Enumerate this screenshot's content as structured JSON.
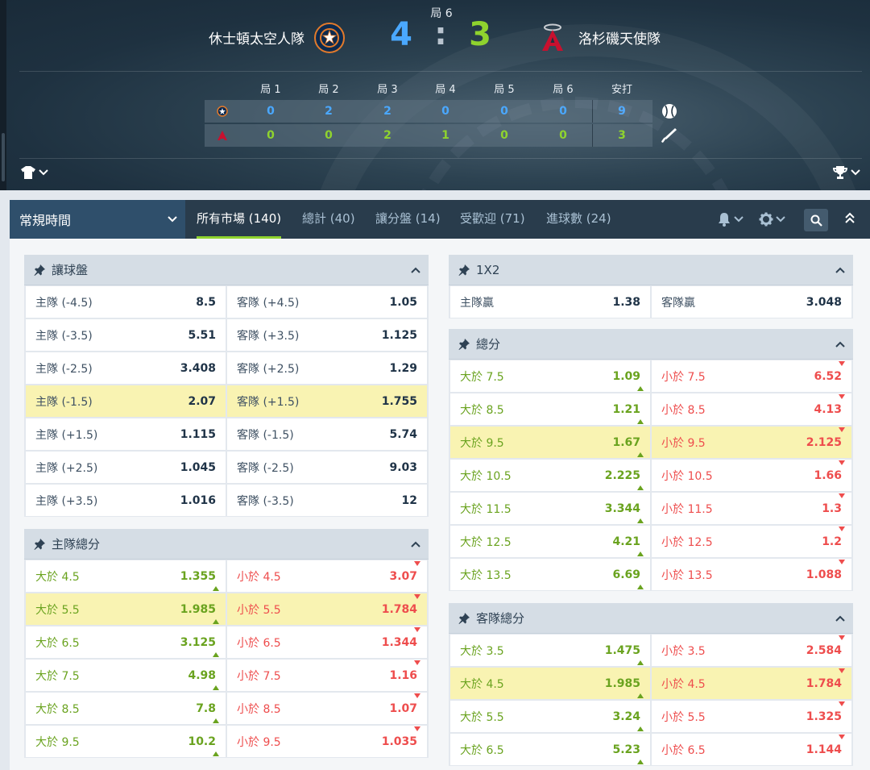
{
  "scoreboard": {
    "period": "局 6",
    "home_team": "休士頓太空人隊",
    "away_team": "洛杉磯天使隊",
    "home_score": "4",
    "separator": ":",
    "away_score": "3",
    "home_color": "#4aa8ff",
    "away_color": "#8fd32e",
    "columns": [
      "局 1",
      "局 2",
      "局 3",
      "局 4",
      "局 5",
      "局 6",
      "安打"
    ],
    "home_line": [
      "0",
      "2",
      "2",
      "0",
      "0",
      "0",
      "9"
    ],
    "away_line": [
      "0",
      "0",
      "2",
      "1",
      "0",
      "0",
      "3"
    ],
    "home_line_icon": "baseball-icon",
    "away_line_icon": "bat-icon"
  },
  "nav": {
    "period_select": "常規時間",
    "tabs": [
      {
        "label": "所有市場 (140)",
        "active": true
      },
      {
        "label": "總計 (40)",
        "active": false
      },
      {
        "label": "讓分盤 (14)",
        "active": false
      },
      {
        "label": "受歡迎 (71)",
        "active": false
      },
      {
        "label": "進球數 (24)",
        "active": false
      }
    ],
    "icons": [
      "bell-icon",
      "gear-icon",
      "search-icon",
      "chevrons-up-icon"
    ]
  },
  "markets": {
    "handicap": {
      "title": "讓球盤",
      "rows": [
        [
          {
            "label": "主隊 (-4.5)",
            "odds": "8.5"
          },
          {
            "label": "客隊 (+4.5)",
            "odds": "1.05"
          }
        ],
        [
          {
            "label": "主隊 (-3.5)",
            "odds": "5.51"
          },
          {
            "label": "客隊 (+3.5)",
            "odds": "1.125"
          }
        ],
        [
          {
            "label": "主隊 (-2.5)",
            "odds": "3.408"
          },
          {
            "label": "客隊 (+2.5)",
            "odds": "1.29"
          }
        ],
        [
          {
            "label": "主隊 (-1.5)",
            "odds": "2.07",
            "highlight": true
          },
          {
            "label": "客隊 (+1.5)",
            "odds": "1.755",
            "highlight": true
          }
        ],
        [
          {
            "label": "主隊 (+1.5)",
            "odds": "1.115"
          },
          {
            "label": "客隊 (-1.5)",
            "odds": "5.74"
          }
        ],
        [
          {
            "label": "主隊 (+2.5)",
            "odds": "1.045"
          },
          {
            "label": "客隊 (-2.5)",
            "odds": "9.03"
          }
        ],
        [
          {
            "label": "主隊 (+3.5)",
            "odds": "1.016"
          },
          {
            "label": "客隊 (-3.5)",
            "odds": "12"
          }
        ]
      ]
    },
    "home_total": {
      "title": "主隊總分",
      "rows": [
        [
          {
            "label": "大於 4.5",
            "odds": "1.355",
            "trend": "up"
          },
          {
            "label": "小於 4.5",
            "odds": "3.07",
            "trend": "down"
          }
        ],
        [
          {
            "label": "大於 5.5",
            "odds": "1.985",
            "trend": "up",
            "highlight": true
          },
          {
            "label": "小於 5.5",
            "odds": "1.784",
            "trend": "down",
            "highlight": true
          }
        ],
        [
          {
            "label": "大於 6.5",
            "odds": "3.125",
            "trend": "up"
          },
          {
            "label": "小於 6.5",
            "odds": "1.344",
            "trend": "down"
          }
        ],
        [
          {
            "label": "大於 7.5",
            "odds": "4.98",
            "trend": "up"
          },
          {
            "label": "小於 7.5",
            "odds": "1.16",
            "trend": "down"
          }
        ],
        [
          {
            "label": "大於 8.5",
            "odds": "7.8",
            "trend": "up"
          },
          {
            "label": "小於 8.5",
            "odds": "1.07",
            "trend": "down"
          }
        ],
        [
          {
            "label": "大於 9.5",
            "odds": "10.2",
            "trend": "up"
          },
          {
            "label": "小於 9.5",
            "odds": "1.035",
            "trend": "down"
          }
        ]
      ]
    },
    "one_x_two": {
      "title": "1X2",
      "rows": [
        [
          {
            "label": "主隊贏",
            "odds": "1.38"
          },
          {
            "label": "客隊贏",
            "odds": "3.048"
          }
        ]
      ]
    },
    "total": {
      "title": "總分",
      "rows": [
        [
          {
            "label": "大於 7.5",
            "odds": "1.09",
            "trend": "up"
          },
          {
            "label": "小於 7.5",
            "odds": "6.52",
            "trend": "down"
          }
        ],
        [
          {
            "label": "大於 8.5",
            "odds": "1.21",
            "trend": "up"
          },
          {
            "label": "小於 8.5",
            "odds": "4.13",
            "trend": "down"
          }
        ],
        [
          {
            "label": "大於 9.5",
            "odds": "1.67",
            "trend": "up",
            "highlight": true
          },
          {
            "label": "小於 9.5",
            "odds": "2.125",
            "trend": "down",
            "highlight": true
          }
        ],
        [
          {
            "label": "大於 10.5",
            "odds": "2.225",
            "trend": "up"
          },
          {
            "label": "小於 10.5",
            "odds": "1.66",
            "trend": "down"
          }
        ],
        [
          {
            "label": "大於 11.5",
            "odds": "3.344",
            "trend": "up"
          },
          {
            "label": "小於 11.5",
            "odds": "1.3",
            "trend": "down"
          }
        ],
        [
          {
            "label": "大於 12.5",
            "odds": "4.21",
            "trend": "up"
          },
          {
            "label": "小於 12.5",
            "odds": "1.2",
            "trend": "down"
          }
        ],
        [
          {
            "label": "大於 13.5",
            "odds": "6.69",
            "trend": "up"
          },
          {
            "label": "小於 13.5",
            "odds": "1.088",
            "trend": "down"
          }
        ]
      ]
    },
    "away_total": {
      "title": "客隊總分",
      "rows": [
        [
          {
            "label": "大於 3.5",
            "odds": "1.475",
            "trend": "up"
          },
          {
            "label": "小於 3.5",
            "odds": "2.584",
            "trend": "down"
          }
        ],
        [
          {
            "label": "大於 4.5",
            "odds": "1.985",
            "trend": "up",
            "highlight": true
          },
          {
            "label": "小於 4.5",
            "odds": "1.784",
            "trend": "down",
            "highlight": true
          }
        ],
        [
          {
            "label": "大於 5.5",
            "odds": "3.24",
            "trend": "up"
          },
          {
            "label": "小於 5.5",
            "odds": "1.325",
            "trend": "down"
          }
        ],
        [
          {
            "label": "大於 6.5",
            "odds": "5.23",
            "trend": "up"
          },
          {
            "label": "小於 6.5",
            "odds": "1.144",
            "trend": "down"
          }
        ]
      ]
    }
  }
}
